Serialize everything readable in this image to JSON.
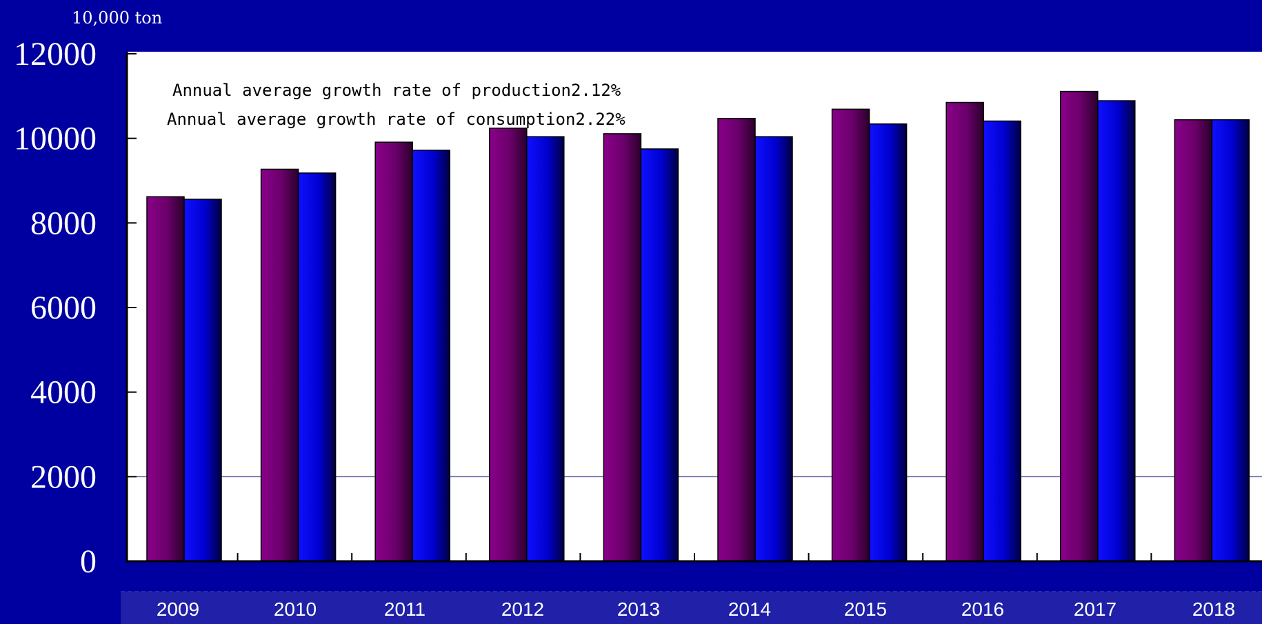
{
  "chart_data": {
    "type": "bar",
    "unit_label": "10,000 ton",
    "categories": [
      "2009",
      "2010",
      "2011",
      "2012",
      "2013",
      "2014",
      "2015",
      "2016",
      "2017",
      "2018"
    ],
    "series": [
      {
        "color": "#800080",
        "values": [
          8620,
          9270,
          9910,
          10240,
          10110,
          10470,
          10690,
          10850,
          11110,
          10440
        ]
      },
      {
        "color": "#0000e0",
        "values": [
          8560,
          9180,
          9720,
          10040,
          9750,
          10040,
          10340,
          10410,
          10890,
          10440
        ]
      }
    ],
    "ylim": [
      0,
      12000
    ],
    "yticks": [
      "0",
      "2000",
      "4000",
      "6000",
      "8000",
      "10000",
      "12000"
    ],
    "annotations": [
      "Annual average growth rate of production2.12%",
      "Annual average growth rate of consumption2.22%"
    ],
    "grid": false
  }
}
